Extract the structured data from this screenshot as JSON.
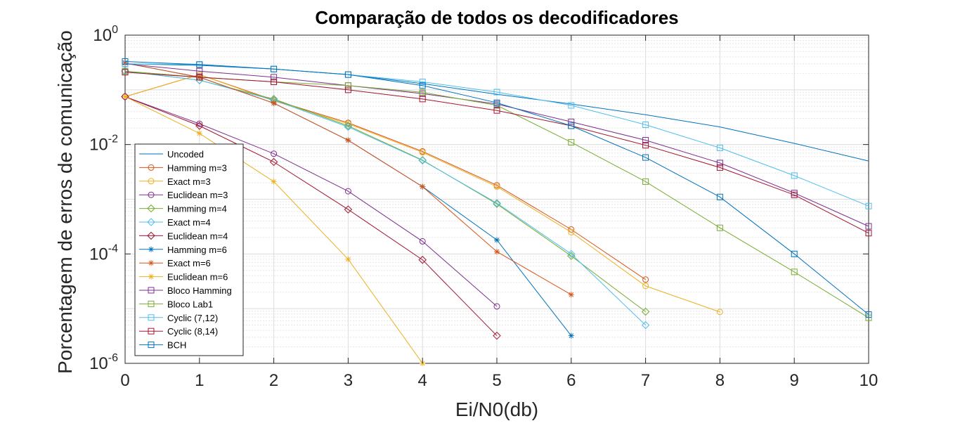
{
  "chart_data": {
    "type": "line",
    "title": "Comparação de todos os decodificadores",
    "xlabel": "Ei/N0(db)",
    "ylabel": "Porcentagem de erros de comunicação",
    "xlim": [
      0,
      10
    ],
    "ylim": [
      1e-06,
      1
    ],
    "yscale": "log",
    "grid": true,
    "minor_grid": true,
    "legend_location": "bottom-left",
    "x_ticks": [
      "0",
      "1",
      "2",
      "3",
      "4",
      "5",
      "6",
      "7",
      "8",
      "9",
      "10"
    ],
    "y_ticks": [
      {
        "base": "10",
        "exp": "-6"
      },
      {
        "base": "10",
        "exp": "-4"
      },
      {
        "base": "10",
        "exp": "-2"
      },
      {
        "base": "10",
        "exp": "0"
      }
    ],
    "series": [
      {
        "name": "Uncoded",
        "color": "#0072BD",
        "marker": "none",
        "x": [
          0,
          1,
          2,
          3,
          4,
          5,
          6,
          7,
          8,
          9,
          10
        ],
        "y": [
          0.3,
          0.28,
          0.24,
          0.19,
          0.13,
          0.083,
          0.055,
          0.035,
          0.021,
          0.0105,
          0.005
        ]
      },
      {
        "name": "Hamming m=3",
        "color": "#D95319",
        "marker": "circle",
        "x": [
          0,
          1,
          2,
          3,
          4,
          5,
          6,
          7
        ],
        "y": [
          0.075,
          0.19,
          0.065,
          0.025,
          0.0075,
          0.0018,
          0.00028,
          3.4e-05
        ]
      },
      {
        "name": "Exact m=3",
        "color": "#EDB120",
        "marker": "circle",
        "x": [
          0,
          1,
          2,
          3,
          4,
          5,
          6,
          7,
          8
        ],
        "y": [
          0.075,
          0.19,
          0.063,
          0.024,
          0.0072,
          0.0017,
          0.00025,
          2.6e-05,
          8.7e-06
        ]
      },
      {
        "name": "Euclidean m=3",
        "color": "#7E2F8E",
        "marker": "circle",
        "x": [
          0,
          1,
          2,
          3,
          4,
          5
        ],
        "y": [
          0.075,
          0.024,
          0.0068,
          0.0014,
          0.00017,
          1.1e-05
        ]
      },
      {
        "name": "Hamming m=4",
        "color": "#77AC30",
        "marker": "diamond",
        "x": [
          0,
          1,
          2,
          3,
          4,
          5,
          6,
          7
        ],
        "y": [
          0.22,
          0.15,
          0.068,
          0.022,
          0.0052,
          0.00082,
          9.2e-05,
          8.8e-06
        ]
      },
      {
        "name": "Exact m=4",
        "color": "#4DBEEE",
        "marker": "diamond",
        "x": [
          0,
          1,
          2,
          3,
          4,
          5,
          6,
          7
        ],
        "y": [
          0.22,
          0.15,
          0.065,
          0.021,
          0.0051,
          0.00085,
          0.0001,
          5e-06
        ]
      },
      {
        "name": "Euclidean m=4",
        "color": "#A2142F",
        "marker": "diamond",
        "x": [
          0,
          1,
          2,
          3,
          4,
          5
        ],
        "y": [
          0.075,
          0.022,
          0.0048,
          0.00065,
          7.8e-05,
          3.2e-06
        ]
      },
      {
        "name": "Hamming m=6",
        "color": "#0072BD",
        "marker": "asterisk",
        "x": [
          0,
          1,
          2,
          3,
          4,
          5,
          6
        ],
        "y": [
          0.31,
          0.17,
          0.057,
          0.012,
          0.0017,
          0.00018,
          3.2e-06
        ]
      },
      {
        "name": "Exact m=6",
        "color": "#D95319",
        "marker": "asterisk",
        "x": [
          0,
          1,
          2,
          3,
          4,
          5,
          6
        ],
        "y": [
          0.31,
          0.17,
          0.057,
          0.012,
          0.0017,
          0.00011,
          1.8e-05
        ]
      },
      {
        "name": "Euclidean m=6",
        "color": "#EDB120",
        "marker": "asterisk",
        "x": [
          0,
          1,
          2,
          3,
          4
        ],
        "y": [
          0.075,
          0.016,
          0.0021,
          8e-05,
          1e-06
        ]
      },
      {
        "name": "Bloco Hamming",
        "color": "#7E2F8E",
        "marker": "square",
        "x": [
          0,
          1,
          2,
          3,
          4,
          5,
          6,
          7,
          8,
          9,
          10
        ],
        "y": [
          0.3,
          0.22,
          0.17,
          0.12,
          0.085,
          0.055,
          0.026,
          0.012,
          0.0046,
          0.0013,
          0.00032
        ]
      },
      {
        "name": "Bloco Lab1",
        "color": "#77AC30",
        "marker": "square",
        "x": [
          0,
          1,
          2,
          3,
          4,
          5,
          6,
          7,
          8,
          9,
          10
        ],
        "y": [
          0.22,
          0.17,
          0.14,
          0.12,
          0.09,
          0.052,
          0.011,
          0.0021,
          0.0003,
          4.7e-05,
          6.8e-06
        ]
      },
      {
        "name": "Cyclic (7,12)",
        "color": "#4DBEEE",
        "marker": "square",
        "x": [
          0,
          1,
          2,
          3,
          4,
          5,
          6,
          7,
          8,
          9,
          10
        ],
        "y": [
          0.3,
          0.29,
          0.24,
          0.19,
          0.14,
          0.091,
          0.052,
          0.023,
          0.0087,
          0.0027,
          0.00075
        ]
      },
      {
        "name": "Cyclic (8,14)",
        "color": "#A2142F",
        "marker": "square",
        "x": [
          0,
          1,
          2,
          3,
          4,
          5,
          6,
          7,
          8,
          9,
          10
        ],
        "y": [
          0.21,
          0.17,
          0.14,
          0.1,
          0.068,
          0.042,
          0.022,
          0.0097,
          0.0038,
          0.0012,
          0.00024
        ]
      },
      {
        "name": "BCH",
        "color": "#0072BD",
        "marker": "square",
        "x": [
          0,
          1,
          2,
          3,
          4,
          5,
          6,
          7,
          8,
          9,
          10
        ],
        "y": [
          0.33,
          0.29,
          0.24,
          0.19,
          0.12,
          0.058,
          0.022,
          0.0058,
          0.0011,
          0.0001,
          7.8e-06
        ]
      }
    ]
  }
}
